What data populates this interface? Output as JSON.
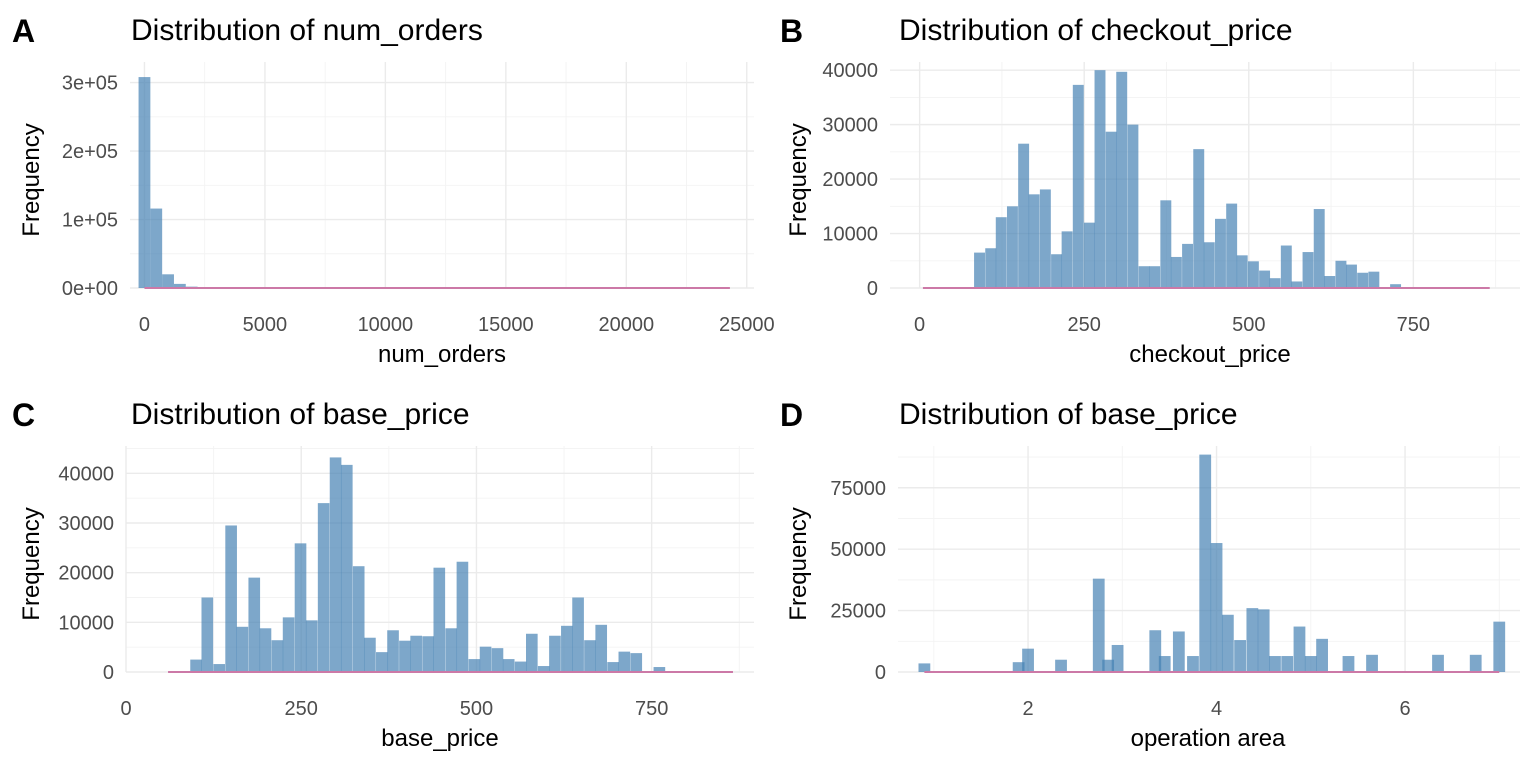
{
  "chart_data": [
    {
      "type": "bar",
      "letter": "A",
      "title": "Distribution of num_orders",
      "xlabel": "num_orders",
      "ylabel": "Frequency",
      "xlim": [
        -600,
        25300
      ],
      "ylim": [
        0,
        330000
      ],
      "xticks": [
        0,
        5000,
        10000,
        15000,
        20000,
        25000
      ],
      "xtick_labels": [
        "0",
        "5000",
        "10000",
        "15000",
        "20000",
        "25000"
      ],
      "yticks": [
        0,
        100000,
        200000,
        300000
      ],
      "ytick_labels": [
        "0e+00",
        "1e+05",
        "2e+05",
        "3e+05"
      ],
      "bin_width": 490,
      "bars": [
        [
          0,
          308000
        ],
        [
          490,
          116000
        ],
        [
          980,
          20000
        ],
        [
          1470,
          6000
        ],
        [
          1960,
          2000
        ],
        [
          2450,
          700
        ],
        [
          2940,
          300
        ]
      ],
      "line_x": [
        0,
        24300
      ],
      "colors": {
        "bar": "#4682B4",
        "line": "#CC79A7"
      }
    },
    {
      "type": "bar",
      "letter": "B",
      "title": "Distribution of checkout_price",
      "xlabel": "checkout_price",
      "ylabel": "Frequency",
      "xlim": [
        -45,
        912
      ],
      "ylim": [
        0,
        41500
      ],
      "xticks": [
        0,
        250,
        500,
        750
      ],
      "xtick_labels": [
        "0",
        "250",
        "500",
        "750"
      ],
      "yticks": [
        0,
        10000,
        20000,
        30000,
        40000
      ],
      "ytick_labels": [
        "0",
        "10000",
        "20000",
        "30000",
        "40000"
      ],
      "bin_width": 16.6,
      "bars": [
        [
          91,
          6500
        ],
        [
          108,
          7300
        ],
        [
          124,
          13000
        ],
        [
          141,
          15000
        ],
        [
          158,
          26500
        ],
        [
          174,
          17200
        ],
        [
          191,
          18100
        ],
        [
          208,
          6200
        ],
        [
          224,
          10400
        ],
        [
          241,
          37300
        ],
        [
          258,
          12000
        ],
        [
          274,
          40000
        ],
        [
          291,
          28700
        ],
        [
          307,
          39700
        ],
        [
          324,
          30000
        ],
        [
          341,
          4000
        ],
        [
          357,
          4000
        ],
        [
          374,
          16100
        ],
        [
          390,
          5700
        ],
        [
          407,
          8100
        ],
        [
          424,
          25500
        ],
        [
          440,
          8400
        ],
        [
          457,
          12700
        ],
        [
          474,
          15500
        ],
        [
          490,
          6000
        ],
        [
          507,
          4900
        ],
        [
          524,
          3200
        ],
        [
          540,
          1800
        ],
        [
          557,
          7800
        ],
        [
          573,
          1200
        ],
        [
          590,
          6600
        ],
        [
          607,
          14500
        ],
        [
          623,
          2200
        ],
        [
          640,
          5000
        ],
        [
          656,
          4300
        ],
        [
          673,
          2800
        ],
        [
          690,
          3000
        ],
        [
          706,
          0
        ],
        [
          723,
          700
        ],
        [
          740,
          0
        ]
      ],
      "line_x": [
        5,
        866
      ],
      "colors": {
        "bar": "#4682B4",
        "line": "#CC79A7"
      }
    },
    {
      "type": "bar",
      "letter": "C",
      "title": "Distribution of base_price",
      "xlabel": "base_price",
      "ylabel": "Frequency",
      "xlim": [
        0,
        896
      ],
      "ylim": [
        0,
        45500
      ],
      "xticks": [
        0,
        250,
        500,
        750
      ],
      "xtick_labels": [
        "0",
        "250",
        "500",
        "750"
      ],
      "yticks": [
        0,
        10000,
        20000,
        30000,
        40000
      ],
      "ytick_labels": [
        "0",
        "10000",
        "20000",
        "30000",
        "40000"
      ],
      "bin_width": 16.6,
      "bars": [
        [
          100,
          2500
        ],
        [
          116,
          15000
        ],
        [
          133,
          1600
        ],
        [
          150,
          29500
        ],
        [
          166,
          9100
        ],
        [
          183,
          19000
        ],
        [
          199,
          8800
        ],
        [
          216,
          6400
        ],
        [
          232,
          11000
        ],
        [
          249,
          25900
        ],
        [
          265,
          10400
        ],
        [
          282,
          34000
        ],
        [
          299,
          43200
        ],
        [
          315,
          41700
        ],
        [
          332,
          21300
        ],
        [
          348,
          6900
        ],
        [
          365,
          4000
        ],
        [
          381,
          8400
        ],
        [
          398,
          6300
        ],
        [
          414,
          7300
        ],
        [
          431,
          7200
        ],
        [
          447,
          21000
        ],
        [
          464,
          8800
        ],
        [
          480,
          22200
        ],
        [
          497,
          2600
        ],
        [
          513,
          5100
        ],
        [
          530,
          4800
        ],
        [
          546,
          2600
        ],
        [
          563,
          2100
        ],
        [
          579,
          7700
        ],
        [
          596,
          1200
        ],
        [
          612,
          7300
        ],
        [
          629,
          9300
        ],
        [
          645,
          15000
        ],
        [
          662,
          6400
        ],
        [
          678,
          9500
        ],
        [
          695,
          2000
        ],
        [
          711,
          4100
        ],
        [
          728,
          3800
        ],
        [
          744,
          0
        ],
        [
          761,
          1000
        ]
      ],
      "line_x": [
        60,
        866
      ],
      "colors": {
        "bar": "#4682B4",
        "line": "#CC79A7"
      }
    },
    {
      "type": "bar",
      "letter": "D",
      "title": "Distribution of base_price",
      "xlabel": "operation area",
      "ylabel": "Frequency",
      "xlim": [
        0.62,
        7.22
      ],
      "ylim": [
        0,
        92000
      ],
      "xticks": [
        2,
        4,
        6
      ],
      "xtick_labels": [
        "2",
        "4",
        "6"
      ],
      "yticks": [
        0,
        25000,
        50000,
        75000
      ],
      "ytick_labels": [
        "0",
        "25000",
        "50000",
        "75000"
      ],
      "bin_width": 0.125,
      "bars": [
        [
          0.9,
          3500
        ],
        [
          1.9,
          4000
        ],
        [
          2.0,
          9500
        ],
        [
          2.35,
          5000
        ],
        [
          2.75,
          38000
        ],
        [
          2.85,
          5000
        ],
        [
          2.95,
          11000
        ],
        [
          3.35,
          17000
        ],
        [
          3.45,
          6500
        ],
        [
          3.6,
          16500
        ],
        [
          3.75,
          6500
        ],
        [
          3.88,
          88500
        ],
        [
          4.0,
          52500
        ],
        [
          4.12,
          23300
        ],
        [
          4.25,
          13000
        ],
        [
          4.38,
          26000
        ],
        [
          4.5,
          25500
        ],
        [
          4.62,
          6500
        ],
        [
          4.75,
          6500
        ],
        [
          4.88,
          18500
        ],
        [
          5.0,
          6500
        ],
        [
          5.12,
          13500
        ],
        [
          5.4,
          6500
        ],
        [
          5.65,
          7000
        ],
        [
          6.35,
          7000
        ],
        [
          6.75,
          7000
        ],
        [
          7.0,
          20500
        ]
      ],
      "line_x": [
        0.9,
        7.0
      ],
      "colors": {
        "bar": "#4682B4",
        "line": "#CC79A7"
      }
    }
  ]
}
